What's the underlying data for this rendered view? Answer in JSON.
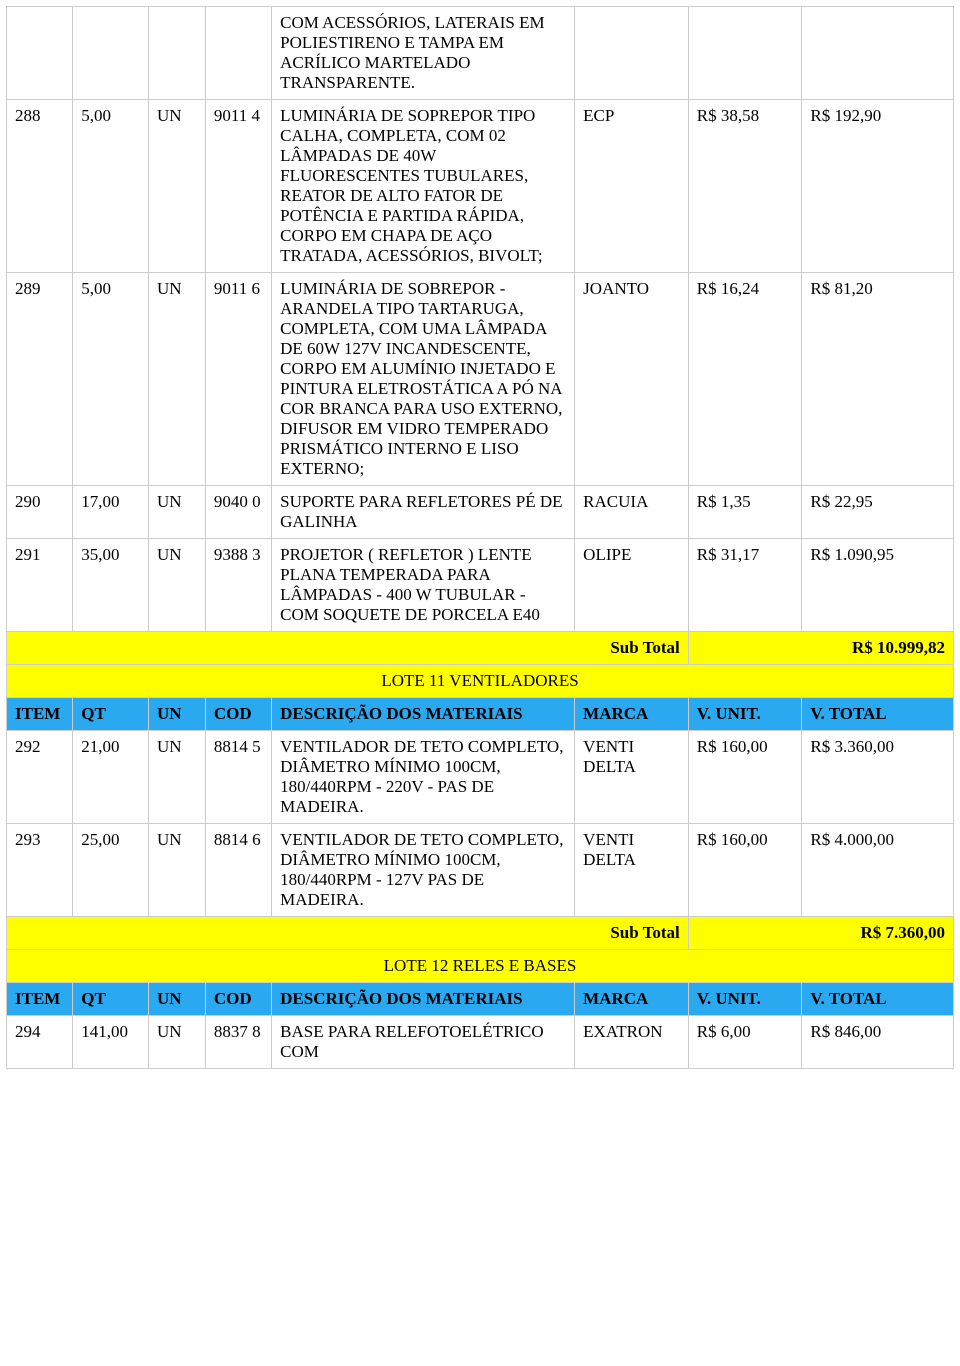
{
  "table": {
    "columns": [
      "ITEM",
      "QT",
      "UN",
      "COD",
      "DESCRIÇÃO DOS MATERIAIS",
      "MARCA",
      "V. UNIT.",
      "V. TOTAL"
    ],
    "rows": [
      {
        "item": "",
        "qt": "",
        "un": "",
        "cod": "",
        "desc": "COM ACESSÓRIOS, LATERAIS EM POLIESTIRENO E TAMPA EM ACRÍLICO MARTELADO TRANSPARENTE.",
        "marca": "",
        "vunit": "",
        "vtotal": ""
      },
      {
        "item": "288",
        "qt": "5,00",
        "un": "UN",
        "cod": "9011 4",
        "desc": "LUMINÁRIA DE SOPREPOR TIPO CALHA, COMPLETA, COM 02 LÂMPADAS DE 40W FLUORESCENTES TUBULARES, REATOR DE ALTO FATOR DE POTÊNCIA E PARTIDA RÁPIDA, CORPO EM CHAPA DE AÇO TRATADA, ACESSÓRIOS, BIVOLT;",
        "marca": "ECP",
        "vunit": "R$ 38,58",
        "vtotal": "R$ 192,90"
      },
      {
        "item": "289",
        "qt": "5,00",
        "un": "UN",
        "cod": "9011 6",
        "desc": "LUMINÁRIA DE SOBREPOR - ARANDELA TIPO TARTARUGA, COMPLETA, COM UMA LÂMPADA DE 60W  127V INCANDESCENTE, CORPO EM ALUMÍNIO INJETADO E PINTURA ELETROSTÁTICA A PÓ NA COR BRANCA PARA USO EXTERNO, DIFUSOR EM VIDRO TEMPERADO PRISMÁTICO INTERNO E LISO EXTERNO;",
        "marca": "JOANTO",
        "vunit": "R$ 16,24",
        "vtotal": "R$ 81,20"
      },
      {
        "item": "290",
        "qt": "17,00",
        "un": "UN",
        "cod": "9040 0",
        "desc": "SUPORTE PARA REFLETORES PÉ DE GALINHA",
        "marca": "RACUIA",
        "vunit": "R$ 1,35",
        "vtotal": "R$ 22,95"
      },
      {
        "item": "291",
        "qt": "35,00",
        "un": "UN",
        "cod": "9388 3",
        "desc": "PROJETOR ( REFLETOR ) LENTE PLANA TEMPERADA PARA LÂMPADAS - 400 W TUBULAR - COM SOQUETE DE PORCELA E40",
        "marca": "OLIPE",
        "vunit": "R$ 31,17",
        "vtotal": "R$ 1.090,95"
      }
    ],
    "subtotal1": {
      "label": "Sub Total",
      "value": "R$ 10.999,82"
    },
    "lote11": {
      "title": "LOTE 11 VENTILADORES"
    },
    "rows11": [
      {
        "item": "292",
        "qt": "21,00",
        "un": "UN",
        "cod": "8814 5",
        "desc": "VENTILADOR DE TETO COMPLETO, DIÂMETRO MÍNIMO 100CM, 180/440RPM - 220V - PAS DE MADEIRA.",
        "marca": "VENTI DELTA",
        "vunit": "R$ 160,00",
        "vtotal": "R$ 3.360,00"
      },
      {
        "item": "293",
        "qt": "25,00",
        "un": "UN",
        "cod": "8814 6",
        "desc": "VENTILADOR DE TETO COMPLETO, DIÂMETRO MÍNIMO 100CM, 180/440RPM - 127V PAS DE MADEIRA.",
        "marca": "VENTI DELTA",
        "vunit": "R$ 160,00",
        "vtotal": "R$ 4.000,00"
      }
    ],
    "subtotal2": {
      "label": "Sub Total",
      "value": "R$ 7.360,00"
    },
    "lote12": {
      "title": "LOTE 12 RELES E BASES"
    },
    "rows12": [
      {
        "item": "294",
        "qt": "141,00",
        "un": "UN",
        "cod": "8837 8",
        "desc": "BASE PARA RELEFOTOELÉTRICO COM",
        "marca": "EXATRON",
        "vunit": "R$ 6,00",
        "vtotal": "R$ 846,00"
      }
    ]
  },
  "colors": {
    "yellow": "#ffff00",
    "blue": "#2aa8f0",
    "border": "#cccccc"
  }
}
